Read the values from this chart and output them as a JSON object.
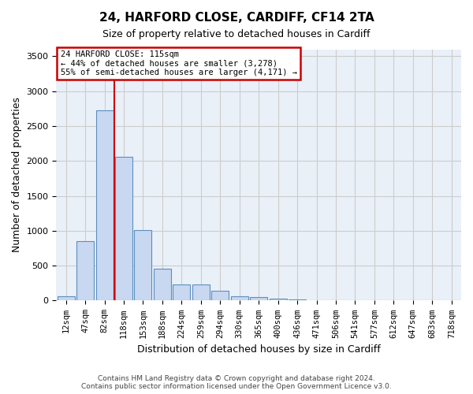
{
  "title1": "24, HARFORD CLOSE, CARDIFF, CF14 2TA",
  "title2": "Size of property relative to detached houses in Cardiff",
  "xlabel": "Distribution of detached houses by size in Cardiff",
  "ylabel": "Number of detached properties",
  "bin_labels": [
    "12sqm",
    "47sqm",
    "82sqm",
    "118sqm",
    "153sqm",
    "188sqm",
    "224sqm",
    "259sqm",
    "294sqm",
    "330sqm",
    "365sqm",
    "400sqm",
    "436sqm",
    "471sqm",
    "506sqm",
    "541sqm",
    "577sqm",
    "612sqm",
    "647sqm",
    "683sqm",
    "718sqm"
  ],
  "bar_values": [
    60,
    850,
    2720,
    2060,
    1010,
    460,
    230,
    230,
    140,
    65,
    55,
    30,
    15,
    0,
    0,
    0,
    0,
    0,
    0,
    0,
    0
  ],
  "bar_color": "#c8d8f0",
  "bar_edge_color": "#5a8fc0",
  "vline_color": "#cc0000",
  "annotation_text": "24 HARFORD CLOSE: 115sqm\n← 44% of detached houses are smaller (3,278)\n55% of semi-detached houses are larger (4,171) →",
  "annotation_box_color": "#cc0000",
  "ylim": [
    0,
    3600
  ],
  "yticks": [
    0,
    500,
    1000,
    1500,
    2000,
    2500,
    3000,
    3500
  ],
  "grid_color": "#cccccc",
  "bg_color": "#eaf0f8",
  "footer1": "Contains HM Land Registry data © Crown copyright and database right 2024.",
  "footer2": "Contains public sector information licensed under the Open Government Licence v3.0."
}
